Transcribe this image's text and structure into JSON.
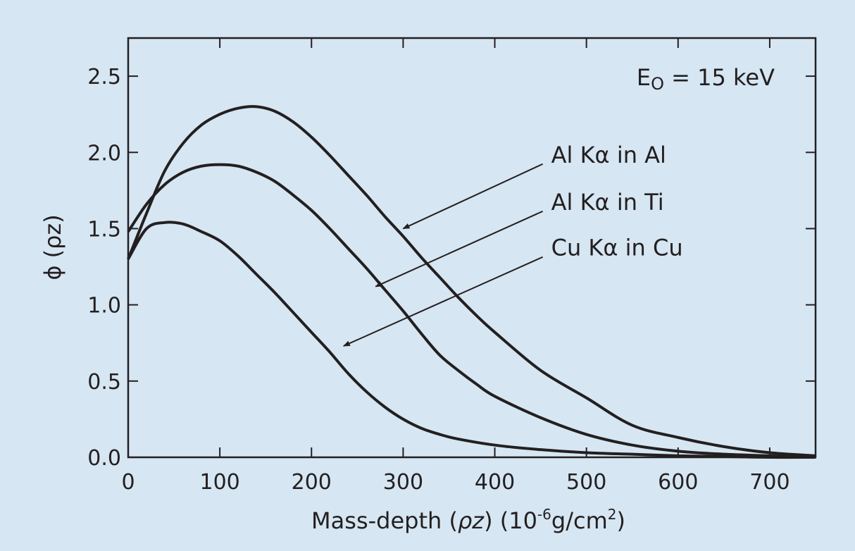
{
  "chart_data": {
    "type": "line",
    "xlabel": "Mass-depth (ρz) (10-6g/cm2)",
    "xlabel_parts": {
      "main": "Mass-depth (",
      "var": "ρz",
      "mid": ") (10",
      "sup1": "-6",
      "unit": "g/cm",
      "sup2": "2",
      "end": ")"
    },
    "ylabel": "ϕ (ρz)",
    "xlim": [
      0,
      750
    ],
    "ylim": [
      0,
      2.75
    ],
    "x_ticks": [
      0,
      100,
      200,
      300,
      400,
      500,
      600,
      700
    ],
    "x_tick_labels": [
      "0",
      "100",
      "200",
      "300",
      "400",
      "500",
      "600",
      "700"
    ],
    "y_ticks": [
      0,
      0.5,
      1.0,
      1.5,
      2.0,
      2.5
    ],
    "y_tick_labels": [
      "0.0",
      "0.5",
      "1.0",
      "1.5",
      "2.0",
      "2.5"
    ],
    "grid": false,
    "legend": "inline-labels-right",
    "annotation": {
      "text": "E",
      "sub": "O",
      "rest": " = 15 keV"
    },
    "series": [
      {
        "name": "Al Kα in Al",
        "x": [
          0,
          20,
          40,
          60,
          80,
          100,
          120,
          140,
          160,
          180,
          200,
          220,
          240,
          260,
          280,
          300,
          320,
          340,
          360,
          380,
          400,
          450,
          500,
          550,
          600,
          650,
          700,
          750
        ],
        "y": [
          1.3,
          1.6,
          1.88,
          2.06,
          2.18,
          2.25,
          2.29,
          2.3,
          2.27,
          2.2,
          2.1,
          1.98,
          1.85,
          1.72,
          1.58,
          1.45,
          1.31,
          1.18,
          1.05,
          0.93,
          0.82,
          0.57,
          0.39,
          0.21,
          0.13,
          0.07,
          0.03,
          0.01
        ]
      },
      {
        "name": "Al Kα in Ti",
        "x": [
          0,
          20,
          40,
          60,
          80,
          100,
          120,
          140,
          160,
          180,
          200,
          220,
          240,
          260,
          280,
          300,
          320,
          340,
          360,
          380,
          400,
          450,
          500,
          550,
          600,
          650,
          700,
          750
        ],
        "y": [
          1.48,
          1.66,
          1.79,
          1.87,
          1.91,
          1.92,
          1.91,
          1.87,
          1.81,
          1.72,
          1.62,
          1.5,
          1.37,
          1.24,
          1.1,
          0.96,
          0.81,
          0.67,
          0.57,
          0.48,
          0.4,
          0.26,
          0.15,
          0.08,
          0.04,
          0.02,
          0.01,
          0.0
        ]
      },
      {
        "name": "Cu Kα in Cu",
        "x": [
          0,
          20,
          40,
          60,
          80,
          100,
          120,
          140,
          160,
          180,
          200,
          220,
          240,
          260,
          280,
          300,
          320,
          340,
          360,
          400,
          450,
          500,
          550,
          600,
          650,
          700,
          750
        ],
        "y": [
          1.3,
          1.5,
          1.54,
          1.53,
          1.48,
          1.42,
          1.32,
          1.2,
          1.08,
          0.95,
          0.82,
          0.69,
          0.55,
          0.43,
          0.33,
          0.25,
          0.19,
          0.15,
          0.12,
          0.08,
          0.05,
          0.03,
          0.02,
          0.01,
          0.005,
          0.0,
          0.0
        ]
      }
    ],
    "label_arrows": [
      {
        "series": 0,
        "label_x": 460,
        "label_y": 1.97,
        "to_x": 300,
        "to_y": 1.5
      },
      {
        "series": 1,
        "label_x": 460,
        "label_y": 1.66,
        "to_x": 270,
        "to_y": 1.12
      },
      {
        "series": 2,
        "label_x": 460,
        "label_y": 1.36,
        "to_x": 235,
        "to_y": 0.73
      }
    ]
  }
}
